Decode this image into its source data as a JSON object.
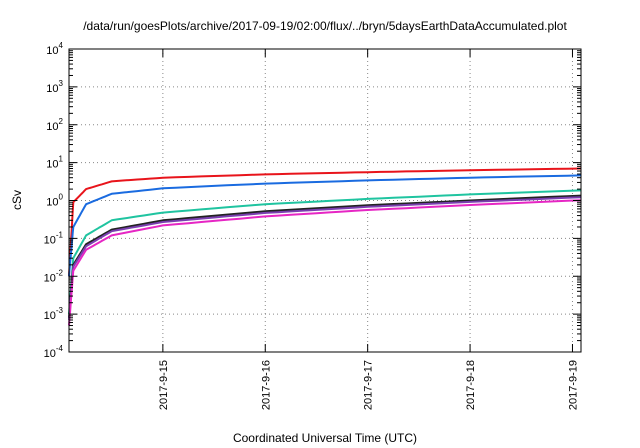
{
  "chart_data": {
    "type": "line",
    "title": "/data/run/goesPlots/archive/2017-09-19/02:00/flux/../bryn/5daysEarthDataAccumulated.plot",
    "xlabel": "Coordinated Universal Time (UTC)",
    "ylabel": "cSv",
    "yscale": "log",
    "ylim": [
      0.0001,
      10000
    ],
    "xlim": [
      "2017-09-14 02:00",
      "2017-09-19 02:00"
    ],
    "grid": true,
    "legend": "none",
    "y_ticks": [
      {
        "base": "10",
        "exp": "-4"
      },
      {
        "base": "10",
        "exp": "-3"
      },
      {
        "base": "10",
        "exp": "-2"
      },
      {
        "base": "10",
        "exp": "-1"
      },
      {
        "base": "10",
        "exp": "0"
      },
      {
        "base": "10",
        "exp": "1"
      },
      {
        "base": "10",
        "exp": "2"
      },
      {
        "base": "10",
        "exp": "3"
      },
      {
        "base": "10",
        "exp": "4"
      }
    ],
    "x_ticks": [
      {
        "label": "2017-9-15",
        "t": "2017-09-15 00:00"
      },
      {
        "label": "2017-9-16",
        "t": "2017-09-16 00:00"
      },
      {
        "label": "2017-9-17",
        "t": "2017-09-17 00:00"
      },
      {
        "label": "2017-9-18",
        "t": "2017-09-18 00:00"
      },
      {
        "label": "2017-9-19",
        "t": "2017-09-19 00:00"
      }
    ],
    "series": [
      {
        "color": "#e8141b",
        "x": [
          "2017-09-14 02:00",
          "2017-09-14 03:00",
          "2017-09-14 06:00",
          "2017-09-14 12:00",
          "2017-09-15 00:00",
          "2017-09-16 00:00",
          "2017-09-17 00:00",
          "2017-09-18 00:00",
          "2017-09-19 02:00"
        ],
        "y": [
          0.01,
          0.9,
          2.0,
          3.2,
          4.0,
          4.9,
          5.6,
          6.3,
          7.0
        ]
      },
      {
        "color": "#1a6be0",
        "x": [
          "2017-09-14 02:00",
          "2017-09-14 03:00",
          "2017-09-14 06:00",
          "2017-09-14 12:00",
          "2017-09-15 00:00",
          "2017-09-16 00:00",
          "2017-09-17 00:00",
          "2017-09-18 00:00",
          "2017-09-19 02:00"
        ],
        "y": [
          0.01,
          0.2,
          0.8,
          1.5,
          2.1,
          2.8,
          3.4,
          4.0,
          4.6
        ]
      },
      {
        "color": "#1fc4a0",
        "x": [
          "2017-09-14 02:00",
          "2017-09-14 03:00",
          "2017-09-14 06:00",
          "2017-09-14 12:00",
          "2017-09-15 00:00",
          "2017-09-16 00:00",
          "2017-09-17 00:00",
          "2017-09-18 00:00",
          "2017-09-19 02:00"
        ],
        "y": [
          0.001,
          0.03,
          0.12,
          0.3,
          0.48,
          0.8,
          1.1,
          1.45,
          1.85
        ]
      },
      {
        "color": "#222222",
        "x": [
          "2017-09-14 02:00",
          "2017-09-14 03:00",
          "2017-09-14 06:00",
          "2017-09-14 12:00",
          "2017-09-15 00:00",
          "2017-09-16 00:00",
          "2017-09-17 00:00",
          "2017-09-18 00:00",
          "2017-09-19 02:00"
        ],
        "y": [
          0.0008,
          0.02,
          0.07,
          0.17,
          0.3,
          0.52,
          0.75,
          1.0,
          1.35
        ]
      },
      {
        "color": "#7a3fb0",
        "x": [
          "2017-09-14 02:00",
          "2017-09-14 03:00",
          "2017-09-14 06:00",
          "2017-09-14 12:00",
          "2017-09-15 00:00",
          "2017-09-16 00:00",
          "2017-09-17 00:00",
          "2017-09-18 00:00",
          "2017-09-19 02:00"
        ],
        "y": [
          0.0007,
          0.018,
          0.062,
          0.155,
          0.27,
          0.47,
          0.68,
          0.92,
          1.22
        ]
      },
      {
        "color": "#e626c4",
        "x": [
          "2017-09-14 02:00",
          "2017-09-14 03:00",
          "2017-09-14 06:00",
          "2017-09-14 12:00",
          "2017-09-15 00:00",
          "2017-09-16 00:00",
          "2017-09-17 00:00",
          "2017-09-18 00:00",
          "2017-09-19 02:00"
        ],
        "y": [
          0.0005,
          0.014,
          0.05,
          0.12,
          0.22,
          0.38,
          0.56,
          0.76,
          1.02
        ]
      }
    ]
  }
}
